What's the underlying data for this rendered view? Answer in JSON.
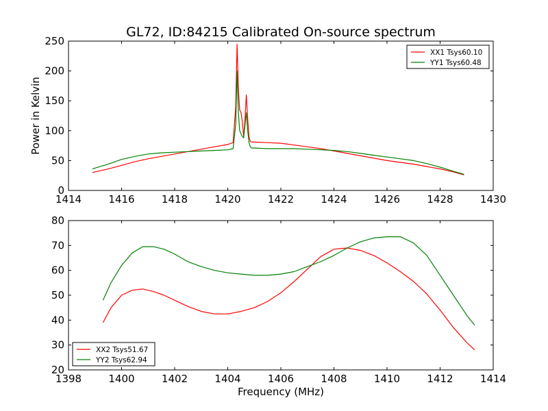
{
  "figure": {
    "title": "GL72, ID:84215 Calibrated On-source spectrum"
  },
  "chart_data": [
    {
      "type": "line",
      "title": "GL72, ID:84215 Calibrated On-source spectrum",
      "xlabel": "",
      "ylabel": "Power in Kelvin",
      "xlim": [
        1414,
        1430
      ],
      "ylim": [
        0,
        250
      ],
      "xticks": [
        1414,
        1416,
        1418,
        1420,
        1422,
        1424,
        1426,
        1428,
        1430
      ],
      "yticks": [
        0,
        50,
        100,
        150,
        200,
        250
      ],
      "legend_position": "top-right",
      "series": [
        {
          "name": "XX1 Tsys60.10",
          "color": "#ff0000",
          "x": [
            1414.9,
            1415.5,
            1416.0,
            1416.5,
            1417.0,
            1417.5,
            1418.0,
            1418.5,
            1419.0,
            1419.5,
            1420.0,
            1420.2,
            1420.3,
            1420.35,
            1420.4,
            1420.45,
            1420.5,
            1420.55,
            1420.6,
            1420.65,
            1420.7,
            1420.75,
            1420.8,
            1420.85,
            1420.9,
            1421.0,
            1421.5,
            1422.0,
            1422.5,
            1423.0,
            1423.5,
            1424.0,
            1424.5,
            1425.0,
            1425.5,
            1426.0,
            1426.5,
            1427.0,
            1427.5,
            1428.0,
            1428.5,
            1428.9
          ],
          "values": [
            30,
            36,
            42,
            48,
            53,
            57,
            61,
            65,
            69,
            73,
            77,
            80,
            140,
            245,
            170,
            135,
            130,
            115,
            90,
            120,
            160,
            120,
            90,
            82,
            81,
            81,
            80,
            79,
            76,
            73,
            70,
            66,
            62,
            58,
            54,
            50,
            47,
            44,
            40,
            36,
            31,
            26
          ]
        },
        {
          "name": "YY1 Tsys60.48",
          "color": "#008000",
          "x": [
            1414.9,
            1415.5,
            1416.0,
            1416.5,
            1417.0,
            1417.5,
            1418.0,
            1418.5,
            1419.0,
            1419.5,
            1420.0,
            1420.2,
            1420.3,
            1420.35,
            1420.4,
            1420.45,
            1420.5,
            1420.55,
            1420.6,
            1420.65,
            1420.7,
            1420.75,
            1420.8,
            1420.85,
            1420.9,
            1421.0,
            1421.5,
            1422.0,
            1422.5,
            1423.0,
            1423.5,
            1424.0,
            1424.5,
            1425.0,
            1425.5,
            1426.0,
            1426.5,
            1427.0,
            1427.5,
            1428.0,
            1428.5,
            1428.9
          ],
          "values": [
            36,
            44,
            52,
            57,
            61,
            63,
            64,
            65,
            66,
            67,
            68,
            70,
            110,
            200,
            130,
            100,
            95,
            90,
            88,
            110,
            130,
            100,
            80,
            73,
            71,
            71,
            70,
            70,
            70,
            69,
            68,
            67,
            65,
            62,
            59,
            56,
            53,
            50,
            45,
            39,
            32,
            27
          ]
        }
      ]
    },
    {
      "type": "line",
      "title": "",
      "xlabel": "Frequency (MHz)",
      "ylabel": "",
      "xlim": [
        1398,
        1414
      ],
      "ylim": [
        20,
        80
      ],
      "xticks": [
        1398,
        1400,
        1402,
        1404,
        1406,
        1408,
        1410,
        1412,
        1414
      ],
      "yticks": [
        20,
        30,
        40,
        50,
        60,
        70,
        80
      ],
      "legend_position": "bottom-left",
      "series": [
        {
          "name": "XX2 Tsys51.67",
          "color": "#ff0000",
          "x": [
            1399.3,
            1399.6,
            1400.0,
            1400.4,
            1400.8,
            1401.2,
            1401.6,
            1402.0,
            1402.5,
            1403.0,
            1403.5,
            1404.0,
            1404.5,
            1405.0,
            1405.5,
            1406.0,
            1406.5,
            1407.0,
            1407.5,
            1408.0,
            1408.5,
            1409.0,
            1409.5,
            1410.0,
            1410.5,
            1411.0,
            1411.5,
            1412.0,
            1412.5,
            1413.0,
            1413.3
          ],
          "values": [
            39,
            45,
            50,
            52,
            52.5,
            51.5,
            50,
            48,
            45.5,
            43.5,
            42.5,
            42.5,
            43.5,
            45,
            47.5,
            51,
            55.5,
            60.5,
            65.5,
            68.5,
            69,
            68,
            66,
            63,
            59.5,
            55.5,
            50.5,
            44,
            37,
            31,
            28
          ]
        },
        {
          "name": "YY2 Tsys62.94",
          "color": "#008000",
          "x": [
            1399.3,
            1399.6,
            1400.0,
            1400.4,
            1400.8,
            1401.2,
            1401.6,
            1402.0,
            1402.5,
            1403.0,
            1403.5,
            1404.0,
            1404.5,
            1405.0,
            1405.5,
            1406.0,
            1406.5,
            1407.0,
            1407.5,
            1408.0,
            1408.5,
            1409.0,
            1409.5,
            1410.0,
            1410.5,
            1411.0,
            1411.5,
            1412.0,
            1412.5,
            1413.0,
            1413.3
          ],
          "values": [
            48,
            55,
            62,
            67,
            69.5,
            69.5,
            68.5,
            66.5,
            63.5,
            61.5,
            60,
            59,
            58.5,
            58,
            58,
            58.5,
            59.5,
            61.5,
            63.5,
            66,
            69,
            71.5,
            73,
            73.5,
            73.5,
            71,
            66,
            58,
            50,
            42,
            38
          ]
        }
      ]
    }
  ]
}
